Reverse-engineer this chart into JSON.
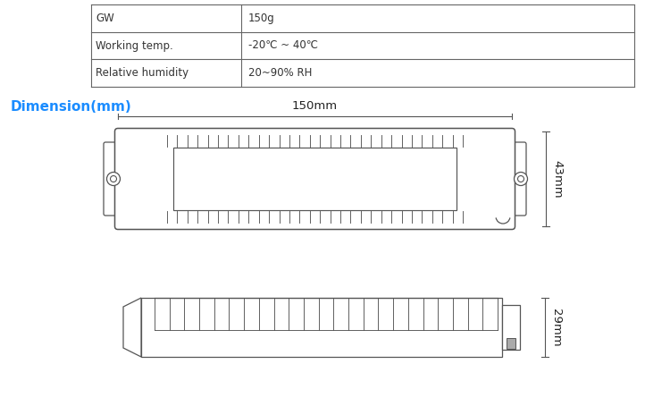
{
  "table": {
    "rows": [
      [
        "GW",
        "150g"
      ],
      [
        "Working temp.",
        "-20℃ ~ 40℃"
      ],
      [
        "Relative humidity",
        "20~90% RH"
      ]
    ],
    "border_color": "#666666",
    "text_color": "#333333",
    "font_size": 8.5
  },
  "dimension_title": "Dimension(mm)",
  "dimension_title_color": "#1a8cff",
  "dimension_title_size": 11,
  "dim_150mm": "150mm",
  "dim_43mm": "43mm",
  "dim_29mm": "29mm",
  "line_color": "#555555",
  "bg_color": "#ffffff"
}
